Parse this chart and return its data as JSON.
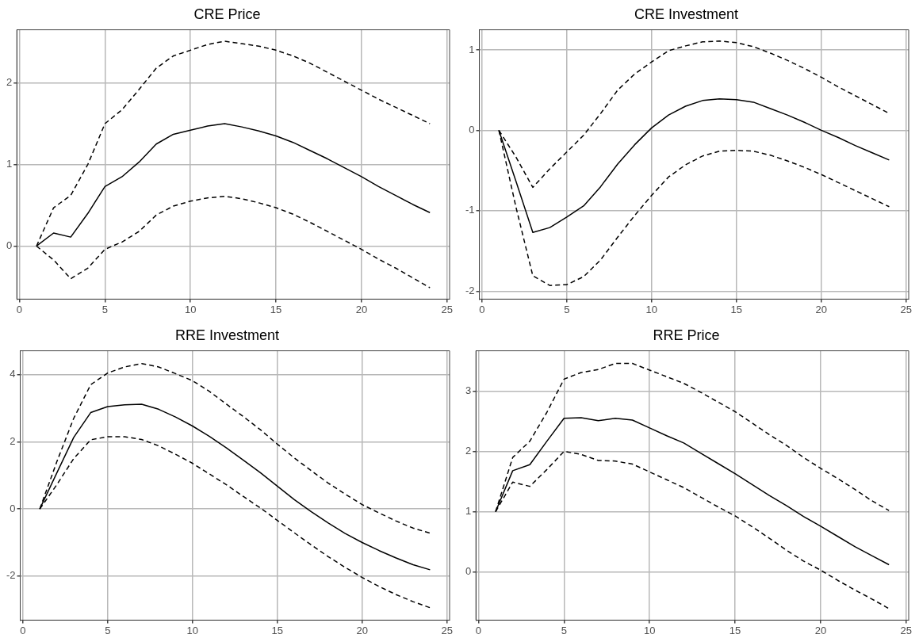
{
  "chart_data": [
    {
      "type": "line",
      "title": "CRE Price",
      "x": [
        1,
        2,
        3,
        4,
        5,
        6,
        7,
        8,
        9,
        10,
        11,
        12,
        13,
        14,
        15,
        16,
        17,
        18,
        19,
        20,
        21,
        22,
        23,
        24
      ],
      "xlim": [
        -0.15,
        25.15
      ],
      "xticks": [
        0,
        5,
        10,
        15,
        20,
        25
      ],
      "ylim": [
        -0.65,
        2.65
      ],
      "yticks": [
        0,
        1,
        2
      ],
      "grid": true,
      "series": [
        {
          "color": "#000000",
          "line_style": "solid",
          "values": [
            0,
            0.16,
            0.11,
            0.4,
            0.73,
            0.85,
            1.03,
            1.25,
            1.37,
            1.42,
            1.47,
            1.5,
            1.46,
            1.41,
            1.35,
            1.27,
            1.17,
            1.07,
            0.96,
            0.85,
            0.73,
            0.62,
            0.51,
            0.41
          ]
        },
        {
          "color": "#000000",
          "line_style": "dashed",
          "values": [
            0,
            0.47,
            0.62,
            1.0,
            1.5,
            1.67,
            1.92,
            2.18,
            2.33,
            2.4,
            2.47,
            2.51,
            2.48,
            2.45,
            2.4,
            2.33,
            2.24,
            2.13,
            2.02,
            1.91,
            1.8,
            1.7,
            1.6,
            1.5
          ]
        },
        {
          "color": "#000000",
          "line_style": "dashed",
          "values": [
            0,
            -0.17,
            -0.4,
            -0.27,
            -0.04,
            0.05,
            0.18,
            0.38,
            0.49,
            0.55,
            0.59,
            0.61,
            0.58,
            0.53,
            0.47,
            0.39,
            0.29,
            0.18,
            0.07,
            -0.04,
            -0.16,
            -0.27,
            -0.39,
            -0.51
          ]
        }
      ]
    },
    {
      "type": "line",
      "title": "CRE Investment",
      "x": [
        1,
        2,
        3,
        4,
        5,
        6,
        7,
        8,
        9,
        10,
        11,
        12,
        13,
        14,
        15,
        16,
        17,
        18,
        19,
        20,
        21,
        22,
        23,
        24
      ],
      "xlim": [
        -0.15,
        25.15
      ],
      "xticks": [
        0,
        5,
        10,
        15,
        20,
        25
      ],
      "ylim": [
        -2.1,
        1.25
      ],
      "yticks": [
        -2,
        -1,
        0,
        1
      ],
      "grid": true,
      "series": [
        {
          "color": "#000000",
          "line_style": "solid",
          "values": [
            0,
            -0.63,
            -1.27,
            -1.21,
            -1.08,
            -0.94,
            -0.7,
            -0.42,
            -0.18,
            0.03,
            0.19,
            0.3,
            0.37,
            0.39,
            0.38,
            0.35,
            0.27,
            0.19,
            0.1,
            0,
            -0.09,
            -0.19,
            -0.28,
            -0.37
          ]
        },
        {
          "color": "#000000",
          "line_style": "dashed",
          "values": [
            0,
            -0.33,
            -0.71,
            -0.48,
            -0.27,
            -0.06,
            0.21,
            0.5,
            0.7,
            0.85,
            0.99,
            1.05,
            1.1,
            1.11,
            1.09,
            1.04,
            0.96,
            0.87,
            0.77,
            0.66,
            0.54,
            0.43,
            0.32,
            0.21
          ]
        },
        {
          "color": "#000000",
          "line_style": "dashed",
          "values": [
            0,
            -0.95,
            -1.81,
            -1.93,
            -1.92,
            -1.82,
            -1.61,
            -1.33,
            -1.06,
            -0.81,
            -0.58,
            -0.43,
            -0.32,
            -0.26,
            -0.25,
            -0.26,
            -0.31,
            -0.38,
            -0.46,
            -0.55,
            -0.65,
            -0.75,
            -0.85,
            -0.95
          ]
        }
      ]
    },
    {
      "type": "line",
      "title": "RRE Investment",
      "x": [
        1,
        2,
        3,
        4,
        5,
        6,
        7,
        8,
        9,
        10,
        11,
        12,
        13,
        14,
        15,
        16,
        17,
        18,
        19,
        20,
        21,
        22,
        23,
        24
      ],
      "xlim": [
        -0.15,
        25.15
      ],
      "xticks": [
        0,
        5,
        10,
        15,
        20,
        25
      ],
      "ylim": [
        -3.31,
        4.71
      ],
      "yticks": [
        -2,
        0,
        2,
        4
      ],
      "grid": true,
      "series": [
        {
          "color": "#000000",
          "line_style": "solid",
          "values": [
            0,
            1.07,
            2.13,
            2.87,
            3.05,
            3.1,
            3.12,
            2.97,
            2.74,
            2.47,
            2.16,
            1.82,
            1.45,
            1.08,
            0.68,
            0.28,
            -0.08,
            -0.42,
            -0.73,
            -1.0,
            -1.24,
            -1.46,
            -1.66,
            -1.81
          ]
        },
        {
          "color": "#000000",
          "line_style": "dashed",
          "values": [
            0,
            1.4,
            2.7,
            3.7,
            4.05,
            4.23,
            4.33,
            4.23,
            4.03,
            3.82,
            3.5,
            3.12,
            2.75,
            2.36,
            1.93,
            1.52,
            1.14,
            0.77,
            0.44,
            0.13,
            -0.12,
            -0.36,
            -0.57,
            -0.72
          ]
        },
        {
          "color": "#000000",
          "line_style": "dashed",
          "values": [
            0,
            0.72,
            1.5,
            2.06,
            2.15,
            2.15,
            2.07,
            1.88,
            1.63,
            1.36,
            1.04,
            0.72,
            0.37,
            0.03,
            -0.34,
            -0.71,
            -1.07,
            -1.42,
            -1.74,
            -2.04,
            -2.31,
            -2.55,
            -2.76,
            -2.94
          ]
        }
      ]
    },
    {
      "type": "line",
      "title": "RRE Price",
      "x": [
        1,
        2,
        3,
        4,
        5,
        6,
        7,
        8,
        9,
        10,
        11,
        12,
        13,
        14,
        15,
        16,
        17,
        18,
        19,
        20,
        21,
        22,
        23,
        24
      ],
      "xlim": [
        -0.15,
        25.15
      ],
      "xticks": [
        0,
        5,
        10,
        15,
        20,
        25
      ],
      "ylim": [
        -0.8,
        3.67
      ],
      "yticks": [
        0,
        1,
        2,
        3
      ],
      "grid": true,
      "series": [
        {
          "color": "#000000",
          "line_style": "solid",
          "values": [
            1.0,
            1.68,
            1.78,
            2.17,
            2.55,
            2.56,
            2.51,
            2.55,
            2.52,
            2.39,
            2.26,
            2.14,
            1.97,
            1.8,
            1.63,
            1.45,
            1.27,
            1.1,
            0.92,
            0.76,
            0.59,
            0.42,
            0.27,
            0.12
          ]
        },
        {
          "color": "#000000",
          "line_style": "dashed",
          "values": [
            1.0,
            1.9,
            2.17,
            2.65,
            3.2,
            3.31,
            3.36,
            3.46,
            3.46,
            3.35,
            3.24,
            3.13,
            2.98,
            2.82,
            2.66,
            2.47,
            2.28,
            2.1,
            1.9,
            1.72,
            1.55,
            1.37,
            1.18,
            1.02
          ]
        },
        {
          "color": "#000000",
          "line_style": "dashed",
          "values": [
            1.0,
            1.49,
            1.42,
            1.7,
            2.0,
            1.95,
            1.85,
            1.84,
            1.79,
            1.66,
            1.53,
            1.4,
            1.24,
            1.08,
            0.93,
            0.75,
            0.56,
            0.36,
            0.18,
            0.03,
            -0.14,
            -0.3,
            -0.45,
            -0.61
          ]
        }
      ]
    }
  ]
}
